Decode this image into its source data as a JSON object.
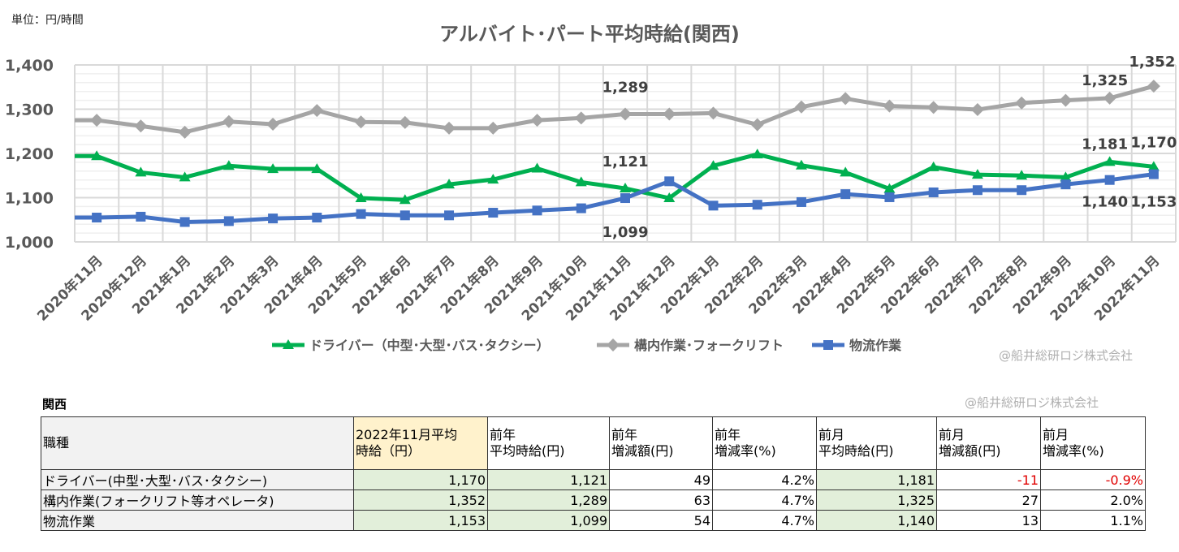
{
  "unit_label": "単位：円/時間",
  "watermark": "@船井総研ロジ株式会社",
  "chart_data": {
    "type": "line",
    "title": "アルバイト･パート平均時給(関西)",
    "ylim": [
      1000,
      1400
    ],
    "yticks": [
      1000,
      1100,
      1200,
      1300,
      1400
    ],
    "ytick_labels": [
      "1,000",
      "1,100",
      "1,200",
      "1,300",
      "1,400"
    ],
    "grid": true,
    "legend_position": "bottom",
    "categories": [
      "2020年11月",
      "2020年12月",
      "2021年1月",
      "2021年2月",
      "2021年3月",
      "2021年4月",
      "2021年5月",
      "2021年6月",
      "2021年7月",
      "2021年8月",
      "2021年9月",
      "2021年10月",
      "2021年11月",
      "2021年12月",
      "2022年1月",
      "2022年2月",
      "2022年3月",
      "2022年4月",
      "2022年5月",
      "2022年6月",
      "2022年7月",
      "2022年8月",
      "2022年9月",
      "2022年10月",
      "2022年11月"
    ],
    "series": [
      {
        "name": "ドライバー（中型･大型･バス･タクシー）",
        "color": "#00b050",
        "marker": "triangle",
        "values": [
          1194,
          1157,
          1146,
          1172,
          1165,
          1165,
          1099,
          1095,
          1130,
          1141,
          1166,
          1135,
          1121,
          1099,
          1172,
          1198,
          1173,
          1157,
          1120,
          1169,
          1152,
          1150,
          1146,
          1181,
          1170
        ]
      },
      {
        "name": "構内作業･フォークリフト",
        "color": "#a5a5a5",
        "marker": "diamond",
        "values": [
          1275,
          1262,
          1248,
          1272,
          1266,
          1297,
          1271,
          1270,
          1257,
          1257,
          1275,
          1280,
          1289,
          1289,
          1291,
          1265,
          1305,
          1324,
          1307,
          1304,
          1299,
          1314,
          1320,
          1325,
          1352
        ]
      },
      {
        "name": "物流作業",
        "color": "#4472c4",
        "marker": "square",
        "values": [
          1055,
          1057,
          1045,
          1047,
          1053,
          1055,
          1063,
          1060,
          1060,
          1066,
          1071,
          1076,
          1099,
          1137,
          1082,
          1084,
          1090,
          1108,
          1101,
          1112,
          1117,
          1117,
          1130,
          1140,
          1153
        ]
      }
    ],
    "data_labels": [
      {
        "series": 1,
        "index": 12,
        "text": "1,289"
      },
      {
        "series": 1,
        "index": 23,
        "text": "1,325"
      },
      {
        "series": 1,
        "index": 24,
        "text": "1,352"
      },
      {
        "series": 0,
        "index": 12,
        "text": "1,121"
      },
      {
        "series": 0,
        "index": 23,
        "text": "1,181"
      },
      {
        "series": 0,
        "index": 24,
        "text": "1,170"
      },
      {
        "series": 2,
        "index": 12,
        "text": "1,099"
      },
      {
        "series": 2,
        "index": 23,
        "text": "1,140"
      },
      {
        "series": 2,
        "index": 24,
        "text": "1,153"
      }
    ]
  },
  "table": {
    "region": "関西",
    "headers": [
      "職種",
      "2022年11月平均\n時給（円）",
      "前年\n平均時給(円)",
      "前年\n増減額(円)",
      "前年\n増減率(%)",
      "前月\n平均時給(円)",
      "前月\n増減額(円)",
      "前月\n増減率(%)"
    ],
    "rows": [
      [
        "ドライバー(中型･大型･バス･タクシー)",
        "1,170",
        "1,121",
        "49",
        "4.2%",
        "1,181",
        "-11",
        "-0.9%"
      ],
      [
        "構内作業(フォークリフト等オペレータ)",
        "1,352",
        "1,289",
        "63",
        "4.7%",
        "1,325",
        "27",
        "2.0%"
      ],
      [
        "物流作業",
        "1,153",
        "1,099",
        "54",
        "4.7%",
        "1,140",
        "13",
        "1.1%"
      ]
    ]
  }
}
